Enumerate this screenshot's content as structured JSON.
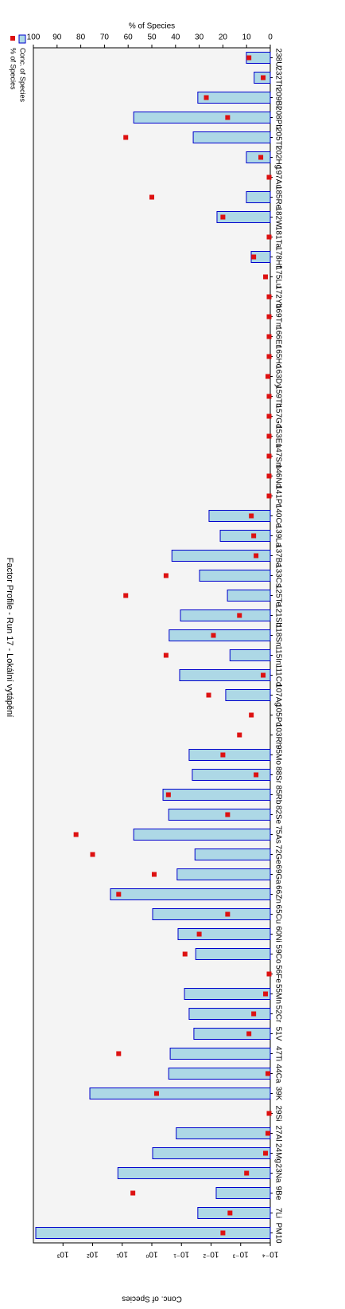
{
  "chart_data": {
    "type": "bar",
    "title": "Factor Profile - Run 17 - Lokální vytápění",
    "ylabel": "Conc. of Species",
    "y2label": "% of Species",
    "categories": [
      "PM10",
      "7Li",
      "9Be",
      "23Na",
      "24Mg",
      "27Al",
      "29Si",
      "39K",
      "44Ca",
      "47Ti",
      "51V",
      "52Cr",
      "55Mn",
      "56Fe",
      "59Co",
      "60Ni",
      "65Cu",
      "66Zn",
      "69Ga",
      "72Ge",
      "75As",
      "82Se",
      "85Rb",
      "88Sr",
      "95Mo",
      "103Rh",
      "105Pd",
      "107Ag",
      "111Cd",
      "115In",
      "118Sn",
      "121Sb",
      "125Te",
      "133Cs",
      "137Ba",
      "139La",
      "140Ce",
      "141Pr",
      "146Nd",
      "147Sm",
      "153Eu",
      "157Gd",
      "159Tb",
      "163Dy",
      "165Ho",
      "166Er",
      "169Tm",
      "172Yb",
      "175Lu",
      "178Hf",
      "181Ta",
      "182W",
      "185Re",
      "197Au",
      "202Hg",
      "205Tl",
      "208Pb",
      "209Bi",
      "232Th",
      "238U"
    ],
    "series": [
      {
        "name": "Conc. of Species",
        "type": "bar",
        "color": "#add8e6",
        "edge_color": "#0000cc",
        "values": [
          8300,
          0.028,
          0.0067,
          14,
          0.94,
          0.15,
          null,
          124,
          0.27,
          0.24,
          0.038,
          0.055,
          0.079,
          null,
          0.033,
          0.13,
          0.94,
          25,
          0.14,
          0.035,
          4.1,
          0.27,
          0.42,
          0.043,
          0.055,
          null,
          null,
          0.0032,
          0.115,
          0.0023,
          0.26,
          0.108,
          0.0028,
          0.0245,
          0.21,
          0.0049,
          0.0117,
          null,
          null,
          null,
          null,
          null,
          null,
          null,
          null,
          null,
          null,
          null,
          null,
          0.00044,
          null,
          0.0063,
          0.00064,
          null,
          0.00064,
          0.04,
          4.1,
          0.028,
          0.00035,
          0.00064
        ]
      },
      {
        "name": "% of Species",
        "type": "scatter",
        "axis": "y2",
        "color": "#dd1111",
        "values": [
          20,
          17,
          58,
          10,
          2,
          1,
          0.5,
          48,
          1,
          64,
          9,
          7,
          2,
          0.5,
          36,
          30,
          18,
          64,
          49,
          75,
          82,
          18,
          43,
          6,
          20,
          13,
          8,
          26,
          3,
          44,
          24,
          13,
          61,
          44,
          6,
          7,
          8,
          0.5,
          0.5,
          0.5,
          0.5,
          0.5,
          0.5,
          1,
          0.5,
          0.5,
          0.5,
          0.5,
          2,
          7,
          0.5,
          20,
          50,
          0.5,
          4,
          61,
          18,
          27,
          3,
          9
        ]
      }
    ],
    "log_scale": "y",
    "ylim": [
      0.0001,
      10000
    ],
    "yticks": [
      {
        "value": 0.0001,
        "label": "10⁻⁴"
      },
      {
        "value": 0.001,
        "label": "10⁻³"
      },
      {
        "value": 0.01,
        "label": "10⁻²"
      },
      {
        "value": 0.1,
        "label": "10⁻¹"
      },
      {
        "value": 1,
        "label": "10⁰"
      },
      {
        "value": 10,
        "label": "10¹"
      },
      {
        "value": 100,
        "label": "10²"
      },
      {
        "value": 1000,
        "label": "10³"
      }
    ],
    "y2lim": [
      0,
      100
    ],
    "y2ticks": [
      0,
      10,
      20,
      30,
      40,
      50,
      60,
      70,
      80,
      90,
      100
    ],
    "legend": "upper left"
  }
}
